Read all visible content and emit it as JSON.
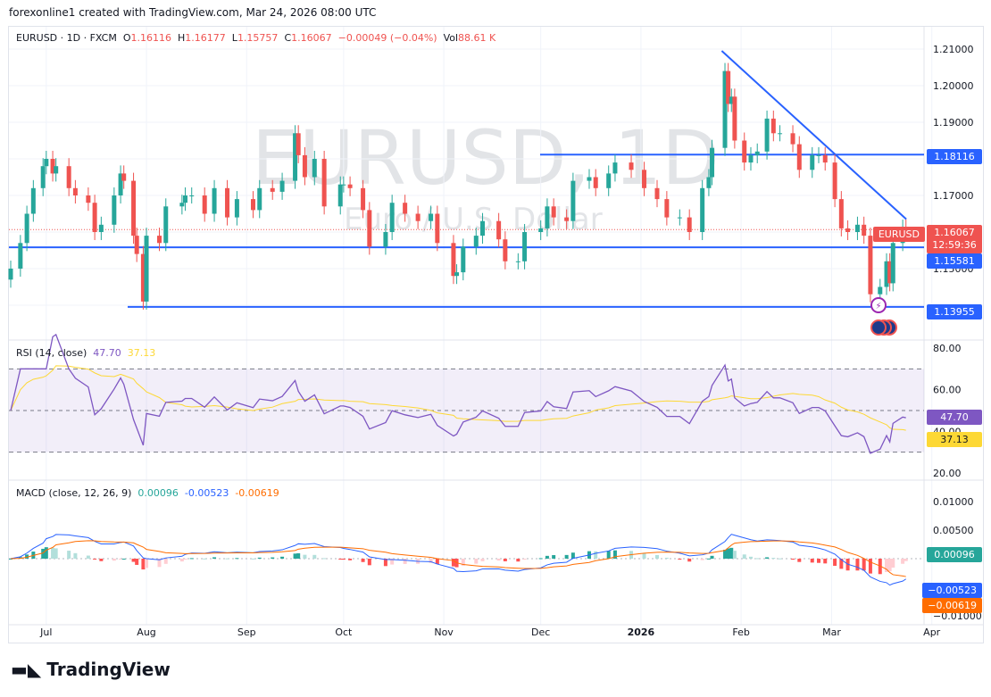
{
  "credit": "forexonline1 created with TradingView.com, Mar 24, 2026 08:00 UTC",
  "legend": {
    "symbol": "EURUSD · 1D · FXCM",
    "o_label": "O",
    "o": "1.16116",
    "h_label": "H",
    "h": "1.16177",
    "l_label": "L",
    "l": "1.15757",
    "c_label": "C",
    "c": "1.16067",
    "change": "−0.00049 (−0.04%)",
    "vol_label": "Vol",
    "vol": "88.61 K"
  },
  "watermark": {
    "title": "EURUSD, 1D",
    "subtitle": "Euro / U.S. Dollar"
  },
  "rsi": {
    "label": "RSI (14, close)",
    "value": "47.70",
    "ma": "37.13",
    "ticks": [
      "80.00",
      "60.00",
      "40.00",
      "20.00"
    ]
  },
  "macd": {
    "label": "MACD (close, 12, 26, 9)",
    "hist": "0.00096",
    "macd": "-0.00523",
    "signal": "-0.00619",
    "hist_tag": "0.00096",
    "macd_tag": "−0.00523",
    "signal_tag": "−0.00619",
    "ticks": [
      "0.01000",
      "0.00500",
      "−0.01000"
    ]
  },
  "tags": {
    "symbol": "EURUSD",
    "price": "1.16067",
    "countdown": "12:59:36",
    "l1": "1.18116",
    "l2": "1.15581",
    "l3": "1.13955"
  },
  "colors": {
    "up": "#26a69a",
    "down": "#ef5350",
    "line": "#2962ff",
    "rsi": "#7e57c2",
    "rsi_ma": "#fdd835",
    "macd": "#2962ff",
    "signal": "#ff6d00"
  },
  "logo": "TradingView",
  "chart_data": {
    "type": "candlestick",
    "price_ticks": [
      "1.21000",
      "1.20000",
      "1.19000",
      "1.17000",
      "1.15000"
    ],
    "price_ylim": [
      1.135,
      1.212
    ],
    "x_ticks": [
      "Jul",
      "Aug",
      "Sep",
      "Oct",
      "Nov",
      "Dec",
      "2026",
      "Feb",
      "Mar",
      "Apr"
    ],
    "horizontal_levels": [
      1.18116,
      1.15581,
      1.13955
    ],
    "trendline": [
      [
        "2026-01-26",
        1.2095
      ],
      [
        "2026-03-23",
        1.1635
      ]
    ],
    "closes": [
      [
        "2025-06-20",
        1.15
      ],
      [
        "2025-06-23",
        1.157
      ],
      [
        "2025-06-25",
        1.165
      ],
      [
        "2025-06-27",
        1.172
      ],
      [
        "2025-06-30",
        1.178
      ],
      [
        "2025-07-01",
        1.18
      ],
      [
        "2025-07-03",
        1.176
      ],
      [
        "2025-07-04",
        1.178
      ],
      [
        "2025-07-08",
        1.172
      ],
      [
        "2025-07-10",
        1.17
      ],
      [
        "2025-07-14",
        1.168
      ],
      [
        "2025-07-16",
        1.16
      ],
      [
        "2025-07-18",
        1.162
      ],
      [
        "2025-07-22",
        1.17
      ],
      [
        "2025-07-24",
        1.176
      ],
      [
        "2025-07-25",
        1.174
      ],
      [
        "2025-07-28",
        1.159
      ],
      [
        "2025-07-29",
        1.154
      ],
      [
        "2025-07-31",
        1.141
      ],
      [
        "2025-08-01",
        1.159
      ],
      [
        "2025-08-05",
        1.157
      ],
      [
        "2025-08-07",
        1.167
      ],
      [
        "2025-08-12",
        1.168
      ],
      [
        "2025-08-13",
        1.17
      ],
      [
        "2025-08-15",
        1.17
      ],
      [
        "2025-08-19",
        1.165
      ],
      [
        "2025-08-22",
        1.172
      ],
      [
        "2025-08-26",
        1.164
      ],
      [
        "2025-08-29",
        1.169
      ],
      [
        "2025-09-03",
        1.166
      ],
      [
        "2025-09-05",
        1.172
      ],
      [
        "2025-09-09",
        1.171
      ],
      [
        "2025-09-12",
        1.174
      ],
      [
        "2025-09-16",
        1.187
      ],
      [
        "2025-09-17",
        1.181
      ],
      [
        "2025-09-19",
        1.175
      ],
      [
        "2025-09-22",
        1.18
      ],
      [
        "2025-09-25",
        1.167
      ],
      [
        "2025-09-30",
        1.173
      ],
      [
        "2025-10-01",
        1.173
      ],
      [
        "2025-10-03",
        1.172
      ],
      [
        "2025-10-07",
        1.166
      ],
      [
        "2025-10-09",
        1.156
      ],
      [
        "2025-10-14",
        1.16
      ],
      [
        "2025-10-16",
        1.168
      ],
      [
        "2025-10-20",
        1.165
      ],
      [
        "2025-10-24",
        1.163
      ],
      [
        "2025-10-28",
        1.165
      ],
      [
        "2025-10-30",
        1.157
      ],
      [
        "2025-11-04",
        1.148
      ],
      [
        "2025-11-05",
        1.149
      ],
      [
        "2025-11-07",
        1.156
      ],
      [
        "2025-11-11",
        1.159
      ],
      [
        "2025-11-13",
        1.163
      ],
      [
        "2025-11-18",
        1.158
      ],
      [
        "2025-11-20",
        1.152
      ],
      [
        "2025-11-24",
        1.152
      ],
      [
        "2025-11-26",
        1.16
      ],
      [
        "2025-12-01",
        1.161
      ],
      [
        "2025-12-03",
        1.167
      ],
      [
        "2025-12-05",
        1.164
      ],
      [
        "2025-12-09",
        1.163
      ],
      [
        "2025-12-11",
        1.174
      ],
      [
        "2025-12-16",
        1.175
      ],
      [
        "2025-12-18",
        1.172
      ],
      [
        "2025-12-22",
        1.176
      ],
      [
        "2025-12-24",
        1.179
      ],
      [
        "2025-12-29",
        1.177
      ],
      [
        "2026-01-02",
        1.172
      ],
      [
        "2026-01-06",
        1.169
      ],
      [
        "2026-01-09",
        1.164
      ],
      [
        "2026-01-13",
        1.164
      ],
      [
        "2026-01-16",
        1.16
      ],
      [
        "2026-01-20",
        1.172
      ],
      [
        "2026-01-22",
        1.175
      ],
      [
        "2026-01-23",
        1.183
      ],
      [
        "2026-01-27",
        1.204
      ],
      [
        "2026-01-28",
        1.195
      ],
      [
        "2026-01-29",
        1.197
      ],
      [
        "2026-01-30",
        1.185
      ],
      [
        "2026-02-02",
        1.179
      ],
      [
        "2026-02-04",
        1.181
      ],
      [
        "2026-02-06",
        1.182
      ],
      [
        "2026-02-09",
        1.191
      ],
      [
        "2026-02-11",
        1.187
      ],
      [
        "2026-02-13",
        1.187
      ],
      [
        "2026-02-17",
        1.184
      ],
      [
        "2026-02-19",
        1.177
      ],
      [
        "2026-02-23",
        1.181
      ],
      [
        "2026-02-25",
        1.181
      ],
      [
        "2026-02-27",
        1.179
      ],
      [
        "2026-03-02",
        1.169
      ],
      [
        "2026-03-04",
        1.161
      ],
      [
        "2026-03-06",
        1.16
      ],
      [
        "2026-03-09",
        1.162
      ],
      [
        "2026-03-11",
        1.159
      ],
      [
        "2026-03-13",
        1.143
      ],
      [
        "2026-03-16",
        1.145
      ],
      [
        "2026-03-18",
        1.152
      ],
      [
        "2026-03-19",
        1.146
      ],
      [
        "2026-03-20",
        1.157
      ],
      [
        "2026-03-23",
        1.1612
      ],
      [
        "2026-03-24",
        1.16067
      ]
    ]
  }
}
